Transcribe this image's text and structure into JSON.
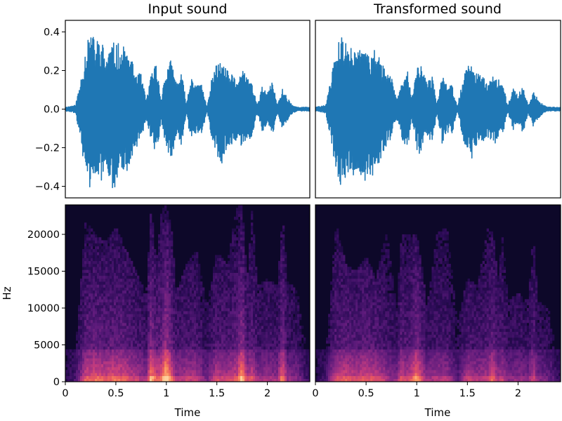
{
  "figure": {
    "titles": {
      "left": "Input sound",
      "right": "Transformed sound"
    }
  },
  "chart_data": [
    {
      "type": "line",
      "title": "Input sound",
      "xlabel": "",
      "ylabel": "",
      "xlim": [
        0,
        2.42
      ],
      "ylim": [
        -0.46,
        0.46
      ],
      "yticks": [
        0.4,
        0.2,
        0.0,
        -0.2,
        -0.4
      ],
      "ytick_labels": [
        "0.4",
        "0.2",
        "0.0",
        "−0.2",
        "−0.4"
      ],
      "color": "#1f77b4",
      "series": [
        {
          "x": [
            0.0,
            0.1,
            0.15,
            0.2,
            0.25,
            0.3,
            0.35,
            0.4,
            0.45,
            0.5,
            0.55,
            0.6,
            0.65,
            0.7,
            0.75,
            0.8,
            0.85,
            0.9,
            0.95,
            1.0,
            1.05,
            1.1,
            1.15,
            1.2,
            1.25,
            1.3,
            1.35,
            1.4,
            1.45,
            1.5,
            1.55,
            1.6,
            1.65,
            1.7,
            1.75,
            1.8,
            1.85,
            1.9,
            1.95,
            2.0,
            2.05,
            2.1,
            2.15,
            2.2,
            2.25,
            2.3,
            2.42
          ],
          "max": [
            0.01,
            0.02,
            0.15,
            0.32,
            0.4,
            0.36,
            0.38,
            0.28,
            0.34,
            0.35,
            0.33,
            0.32,
            0.26,
            0.2,
            0.18,
            0.05,
            0.18,
            0.25,
            0.06,
            0.22,
            0.26,
            0.14,
            0.19,
            0.03,
            0.19,
            0.12,
            0.14,
            0.01,
            0.16,
            0.24,
            0.25,
            0.2,
            0.18,
            0.16,
            0.2,
            0.17,
            0.14,
            0.02,
            0.12,
            0.08,
            0.15,
            0.02,
            0.11,
            0.06,
            0.02,
            0.01,
            0.01
          ],
          "min": [
            -0.01,
            -0.02,
            -0.16,
            -0.34,
            -0.42,
            -0.38,
            -0.39,
            -0.33,
            -0.42,
            -0.4,
            -0.36,
            -0.35,
            -0.26,
            -0.2,
            -0.16,
            -0.05,
            -0.16,
            -0.25,
            -0.06,
            -0.22,
            -0.26,
            -0.14,
            -0.19,
            -0.03,
            -0.19,
            -0.12,
            -0.14,
            -0.01,
            -0.15,
            -0.24,
            -0.28,
            -0.2,
            -0.18,
            -0.16,
            -0.21,
            -0.17,
            -0.14,
            -0.02,
            -0.12,
            -0.08,
            -0.14,
            -0.02,
            -0.11,
            -0.06,
            -0.02,
            -0.01,
            -0.01
          ]
        }
      ]
    },
    {
      "type": "line",
      "title": "Transformed sound",
      "xlabel": "",
      "ylabel": "",
      "xlim": [
        0,
        2.42
      ],
      "ylim": [
        -0.46,
        0.46
      ],
      "color": "#1f77b4",
      "series": [
        {
          "x": [
            0.0,
            0.1,
            0.15,
            0.2,
            0.25,
            0.3,
            0.35,
            0.4,
            0.45,
            0.5,
            0.55,
            0.6,
            0.65,
            0.7,
            0.75,
            0.8,
            0.85,
            0.9,
            0.95,
            1.0,
            1.05,
            1.1,
            1.15,
            1.2,
            1.25,
            1.3,
            1.35,
            1.4,
            1.45,
            1.5,
            1.55,
            1.6,
            1.65,
            1.7,
            1.75,
            1.8,
            1.85,
            1.9,
            1.95,
            2.0,
            2.05,
            2.1,
            2.15,
            2.2,
            2.25,
            2.3,
            2.42
          ],
          "max": [
            0.01,
            0.02,
            0.15,
            0.3,
            0.38,
            0.35,
            0.37,
            0.28,
            0.33,
            0.33,
            0.32,
            0.3,
            0.25,
            0.19,
            0.17,
            0.05,
            0.17,
            0.24,
            0.06,
            0.21,
            0.25,
            0.13,
            0.18,
            0.03,
            0.18,
            0.12,
            0.13,
            0.01,
            0.15,
            0.23,
            0.24,
            0.19,
            0.17,
            0.15,
            0.19,
            0.16,
            0.13,
            0.02,
            0.11,
            0.07,
            0.13,
            0.02,
            0.1,
            0.05,
            0.02,
            0.01,
            0.01
          ],
          "min": [
            -0.01,
            -0.02,
            -0.15,
            -0.32,
            -0.4,
            -0.37,
            -0.38,
            -0.32,
            -0.4,
            -0.38,
            -0.35,
            -0.33,
            -0.25,
            -0.19,
            -0.15,
            -0.05,
            -0.15,
            -0.24,
            -0.06,
            -0.21,
            -0.25,
            -0.13,
            -0.18,
            -0.03,
            -0.18,
            -0.12,
            -0.13,
            -0.01,
            -0.14,
            -0.23,
            -0.27,
            -0.19,
            -0.17,
            -0.15,
            -0.2,
            -0.16,
            -0.13,
            -0.02,
            -0.11,
            -0.07,
            -0.13,
            -0.02,
            -0.1,
            -0.05,
            -0.02,
            -0.01,
            -0.01
          ]
        }
      ]
    },
    {
      "type": "heatmap",
      "title": "",
      "xlabel": "Time",
      "ylabel": "Hz",
      "xlim": [
        0,
        2.42
      ],
      "ylim": [
        0,
        24000
      ],
      "xticks": [
        0,
        0.5,
        1,
        1.5,
        2
      ],
      "xtick_labels": [
        "0",
        "0.5",
        "1",
        "1.5",
        "2"
      ],
      "yticks": [
        0,
        5000,
        10000,
        15000,
        20000
      ],
      "ytick_labels": [
        "0",
        "5000",
        "10000",
        "15000",
        "20000"
      ],
      "colormap": [
        "#0d0829",
        "#2c0b57",
        "#5a1a7a",
        "#8a2a85",
        "#c23b7e",
        "#e9595f",
        "#fb8f5c",
        "#fdd09b"
      ],
      "time_s": [
        0.0,
        0.1,
        0.2,
        0.3,
        0.4,
        0.5,
        0.6,
        0.7,
        0.8,
        0.85,
        0.9,
        0.95,
        1.0,
        1.05,
        1.1,
        1.2,
        1.3,
        1.4,
        1.5,
        1.6,
        1.7,
        1.75,
        1.8,
        1.85,
        1.9,
        2.0,
        2.1,
        2.15,
        2.2,
        2.3,
        2.4
      ],
      "energy": [
        0.05,
        0.15,
        0.55,
        0.6,
        0.55,
        0.6,
        0.55,
        0.45,
        0.35,
        0.8,
        0.55,
        0.65,
        0.95,
        0.6,
        0.4,
        0.45,
        0.45,
        0.25,
        0.5,
        0.45,
        0.55,
        0.85,
        0.45,
        0.55,
        0.35,
        0.4,
        0.35,
        0.7,
        0.35,
        0.3,
        0.1
      ],
      "hf_extent_hz": [
        1500,
        4000,
        22000,
        20000,
        19000,
        21000,
        18000,
        15000,
        12000,
        24000,
        16000,
        23000,
        24000,
        21000,
        12000,
        16000,
        18000,
        10000,
        18000,
        16000,
        24000,
        24000,
        14000,
        24000,
        13000,
        14000,
        13000,
        23000,
        14000,
        12000,
        3000
      ]
    },
    {
      "type": "heatmap",
      "title": "",
      "xlabel": "Time",
      "ylabel": "",
      "xlim": [
        0,
        2.42
      ],
      "ylim": [
        0,
        24000
      ],
      "xticks": [
        0,
        0.5,
        1,
        1.5,
        2
      ],
      "xtick_labels": [
        "0",
        "0.5",
        "1",
        "1.5",
        "2"
      ],
      "colormap": [
        "#0d0829",
        "#2c0b57",
        "#5a1a7a",
        "#8a2a85",
        "#c23b7e",
        "#e9595f",
        "#fb8f5c",
        "#fdd09b"
      ],
      "time_s": [
        0.0,
        0.1,
        0.2,
        0.3,
        0.4,
        0.5,
        0.6,
        0.7,
        0.8,
        0.85,
        0.9,
        0.95,
        1.0,
        1.05,
        1.1,
        1.2,
        1.3,
        1.4,
        1.5,
        1.6,
        1.7,
        1.75,
        1.8,
        1.85,
        1.9,
        2.0,
        2.1,
        2.15,
        2.2,
        2.3,
        2.4
      ],
      "energy": [
        0.05,
        0.15,
        0.5,
        0.55,
        0.5,
        0.55,
        0.5,
        0.4,
        0.3,
        0.55,
        0.45,
        0.55,
        0.75,
        0.5,
        0.35,
        0.4,
        0.4,
        0.2,
        0.45,
        0.4,
        0.45,
        0.6,
        0.4,
        0.45,
        0.3,
        0.35,
        0.3,
        0.5,
        0.3,
        0.25,
        0.1
      ],
      "hf_extent_hz": [
        1500,
        3000,
        22000,
        16000,
        15000,
        17000,
        14000,
        21000,
        10000,
        20000,
        20000,
        20000,
        20000,
        16000,
        10000,
        20000,
        21000,
        8000,
        14000,
        13000,
        21000,
        21000,
        14000,
        20000,
        11000,
        12000,
        11000,
        20000,
        11000,
        10000,
        3000
      ]
    }
  ]
}
